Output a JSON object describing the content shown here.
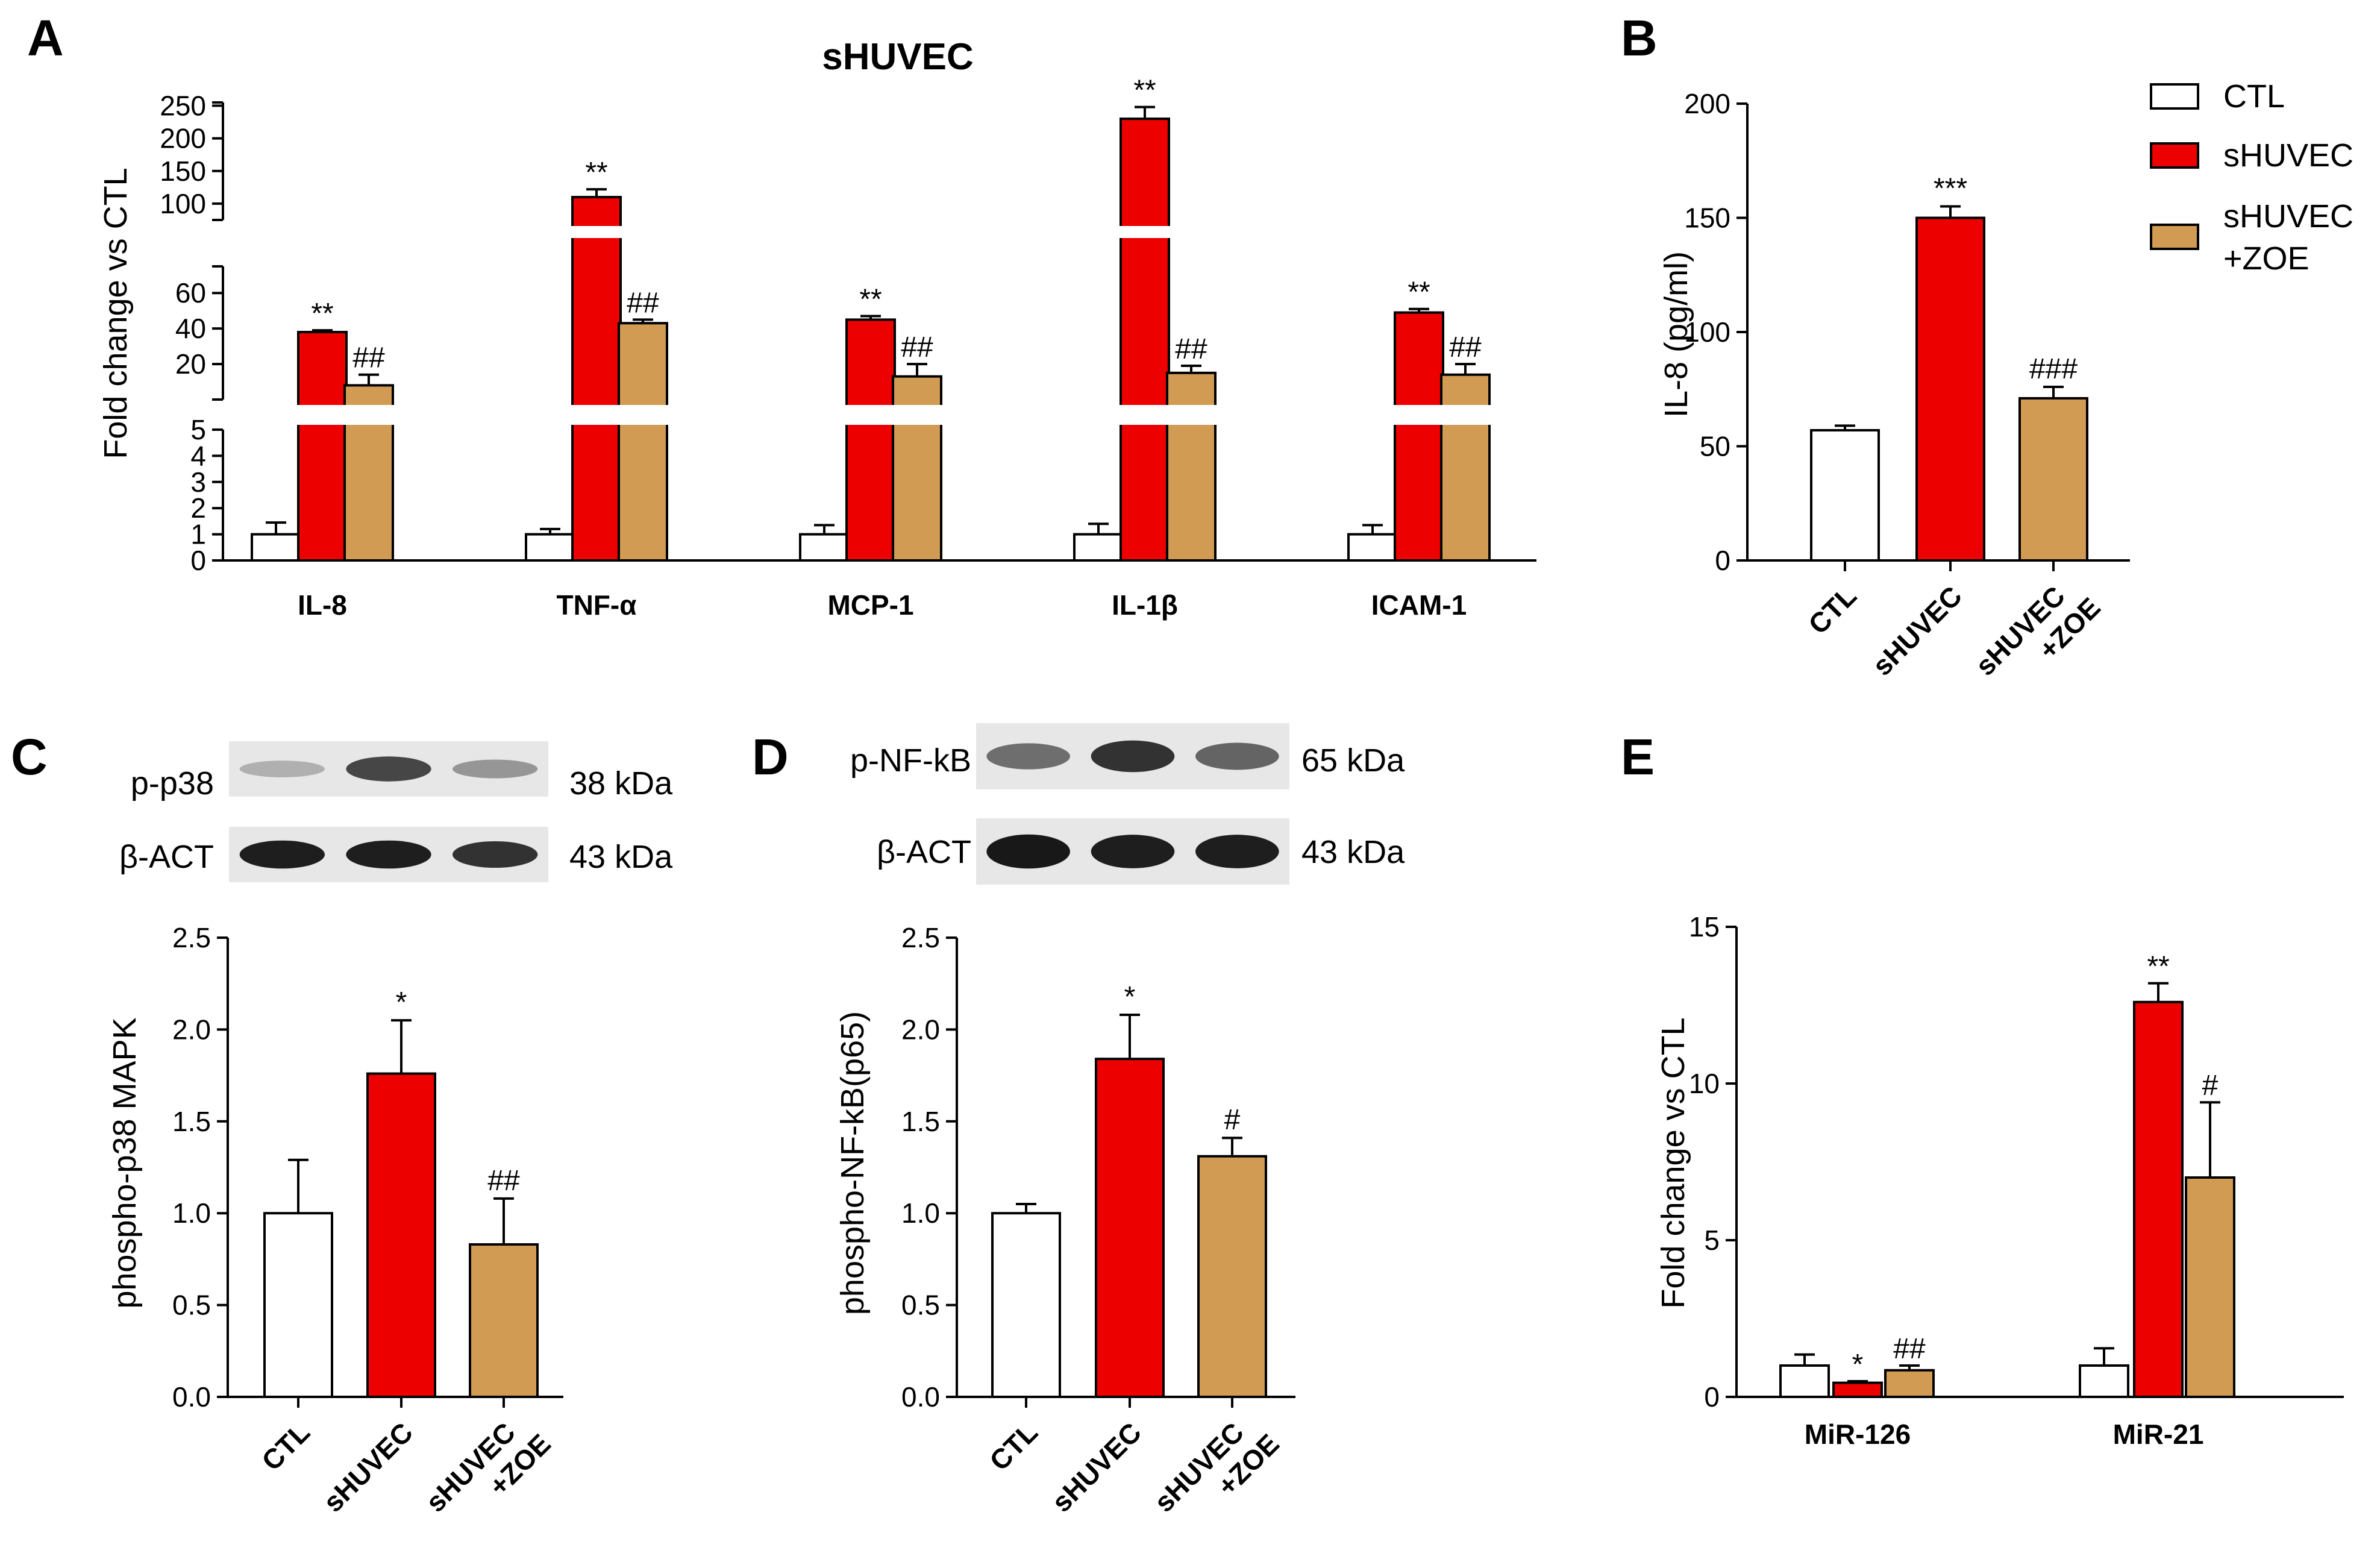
{
  "figure": {
    "panels": [
      "A",
      "B",
      "C",
      "D",
      "E"
    ],
    "colors": {
      "CTL": "#ffffff",
      "sHUVEC": "#ed0000",
      "sHUVEC+ZOE": "#d29b54",
      "stroke": "#000000"
    }
  },
  "legend": {
    "entries": [
      {
        "label": "CTL",
        "color": "#ffffff"
      },
      {
        "label": "sHUVEC",
        "color": "#ed0000"
      },
      {
        "label": "sHUVEC",
        "label2": "+ZOE",
        "color": "#d29b54"
      }
    ]
  },
  "blots": {
    "C": {
      "rows": [
        {
          "label": "p-p38",
          "kda": "38 kDa",
          "intensity": [
            0.22,
            0.75,
            0.35
          ]
        },
        {
          "label": "β-ACT",
          "kda": "43 kDa",
          "intensity": [
            0.95,
            0.95,
            0.85
          ]
        }
      ]
    },
    "D": {
      "rows": [
        {
          "label": "p-NF-kB",
          "kda": "65 kDa",
          "intensity": [
            0.55,
            0.85,
            0.6
          ]
        },
        {
          "label": "β-ACT",
          "kda": "43 kDa",
          "intensity": [
            0.98,
            0.95,
            0.95
          ]
        }
      ]
    }
  },
  "chart_data": [
    {
      "panel": "A",
      "type": "bar",
      "title": "sHUVEC",
      "ylabel": "Fold change vs CTL",
      "categories": [
        "IL-8",
        "TNF-α",
        "MCP-1",
        "IL-1β",
        "ICAM-1"
      ],
      "series": [
        {
          "name": "CTL",
          "values": [
            1,
            1,
            1,
            1,
            1
          ],
          "errors": [
            0.45,
            0.2,
            0.35,
            0.4,
            0.35
          ],
          "marks": [
            "",
            "",
            "",
            "",
            ""
          ]
        },
        {
          "name": "sHUVEC",
          "values": [
            38,
            110,
            45,
            230,
            49
          ],
          "errors": [
            1,
            12,
            2,
            18,
            2
          ],
          "marks": [
            "**",
            "**",
            "**",
            "**",
            "**"
          ]
        },
        {
          "name": "sHUVEC+ZOE",
          "values": [
            8,
            43,
            13,
            15,
            14
          ],
          "errors": [
            6,
            2,
            7,
            4,
            6
          ],
          "marks": [
            "##",
            "##",
            "##",
            "##",
            "##"
          ]
        }
      ],
      "axis_segments": [
        {
          "range": [
            0,
            5
          ],
          "ticks": [
            0,
            1,
            2,
            3,
            4,
            5
          ]
        },
        {
          "range": [
            0,
            75
          ],
          "ticks": [
            20,
            40,
            60
          ]
        },
        {
          "range": [
            75,
            255
          ],
          "ticks": [
            100,
            150,
            200,
            250
          ]
        }
      ]
    },
    {
      "panel": "B",
      "type": "bar",
      "ylabel": "IL-8 (pg/ml)",
      "categories": [
        "CTL",
        "sHUVEC",
        "sHUVEC +ZOE"
      ],
      "category_lines": [
        [
          "CTL"
        ],
        [
          "sHUVEC"
        ],
        [
          "sHUVEC",
          "+ZOE"
        ]
      ],
      "values": [
        57,
        150,
        71
      ],
      "errors": [
        2,
        5,
        5
      ],
      "marks": [
        "",
        "***",
        "###"
      ],
      "ylim": [
        0,
        200
      ],
      "yticks": [
        0,
        50,
        100,
        150,
        200
      ]
    },
    {
      "panel": "C",
      "type": "bar",
      "ylabel": "phospho-p38 MAPK",
      "categories": [
        "CTL",
        "sHUVEC",
        "sHUVEC +ZOE"
      ],
      "category_lines": [
        [
          "CTL"
        ],
        [
          "sHUVEC"
        ],
        [
          "sHUVEC",
          "+ZOE"
        ]
      ],
      "values": [
        1.0,
        1.76,
        0.83
      ],
      "errors": [
        0.29,
        0.29,
        0.25
      ],
      "marks": [
        "",
        "*",
        "##"
      ],
      "ylim": [
        0,
        2.5
      ],
      "yticks": [
        "0.0",
        "0.5",
        "1.0",
        "1.5",
        "2.0",
        "2.5"
      ]
    },
    {
      "panel": "D",
      "type": "bar",
      "ylabel": "phospho-NF-kB(p65)",
      "categories": [
        "CTL",
        "sHUVEC",
        "sHUVEC +ZOE"
      ],
      "category_lines": [
        [
          "CTL"
        ],
        [
          "sHUVEC"
        ],
        [
          "sHUVEC",
          "+ZOE"
        ]
      ],
      "values": [
        1.0,
        1.84,
        1.31
      ],
      "errors": [
        0.05,
        0.24,
        0.1
      ],
      "marks": [
        "",
        "*",
        "#"
      ],
      "ylim": [
        0,
        2.5
      ],
      "yticks": [
        "0.0",
        "0.5",
        "1.0",
        "1.5",
        "2.0",
        "2.5"
      ]
    },
    {
      "panel": "E",
      "type": "bar",
      "ylabel": "Fold change  vs CTL",
      "categories": [
        "MiR-126",
        "MiR-21"
      ],
      "series": [
        {
          "name": "CTL",
          "values": [
            1.0,
            1.0
          ],
          "errors": [
            0.35,
            0.55
          ],
          "marks": [
            "",
            ""
          ]
        },
        {
          "name": "sHUVEC",
          "values": [
            0.45,
            12.6
          ],
          "errors": [
            0.05,
            0.6
          ],
          "marks": [
            "*",
            "**"
          ]
        },
        {
          "name": "sHUVEC+ZOE",
          "values": [
            0.85,
            7.0
          ],
          "errors": [
            0.15,
            2.4
          ],
          "marks": [
            "##",
            "#"
          ]
        }
      ],
      "ylim": [
        0,
        15
      ],
      "yticks": [
        0,
        5,
        10,
        15
      ]
    }
  ]
}
